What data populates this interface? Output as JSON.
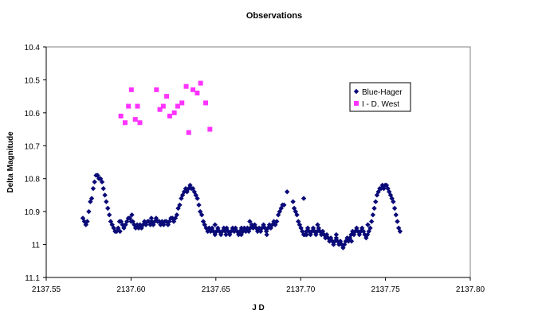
{
  "chart_data": {
    "type": "scatter",
    "title": "Observations",
    "xlabel": "J D",
    "ylabel": "Delta Magnitude",
    "xlim": [
      2137.55,
      2137.8
    ],
    "ylim": [
      10.4,
      11.1
    ],
    "y_reversed": true,
    "grid": false,
    "legend_position": "top-right",
    "x_ticks": [
      "2137.55",
      "2137.60",
      "2137.65",
      "2137.70",
      "2137.75",
      "2137.80"
    ],
    "x_tick_values": [
      2137.55,
      2137.6,
      2137.65,
      2137.7,
      2137.75,
      2137.8
    ],
    "y_ticks": [
      "10.4",
      "10.5",
      "10.6",
      "10.7",
      "10.8",
      "10.9",
      "11",
      "11.1"
    ],
    "y_tick_values": [
      10.4,
      10.5,
      10.6,
      10.7,
      10.8,
      10.9,
      11.0,
      11.1
    ],
    "series": [
      {
        "name": "Blue-Hager",
        "color": "#0a0a78",
        "marker": "diamond",
        "points": [
          [
            2137.5716,
            10.92
          ],
          [
            2137.5725,
            10.93
          ],
          [
            2137.5734,
            10.94
          ],
          [
            2137.5742,
            10.93
          ],
          [
            2137.5751,
            10.9
          ],
          [
            2137.576,
            10.87
          ],
          [
            2137.5768,
            10.86
          ],
          [
            2137.5777,
            10.83
          ],
          [
            2137.5785,
            10.81
          ],
          [
            2137.5794,
            10.79
          ],
          [
            2137.5803,
            10.79
          ],
          [
            2137.5811,
            10.8
          ],
          [
            2137.582,
            10.8
          ],
          [
            2137.5829,
            10.81
          ],
          [
            2137.5837,
            10.83
          ],
          [
            2137.5846,
            10.85
          ],
          [
            2137.5854,
            10.87
          ],
          [
            2137.5863,
            10.89
          ],
          [
            2137.5872,
            10.91
          ],
          [
            2137.588,
            10.93
          ],
          [
            2137.5889,
            10.94
          ],
          [
            2137.5898,
            10.95
          ],
          [
            2137.5906,
            10.96
          ],
          [
            2137.5915,
            10.96
          ],
          [
            2137.5924,
            10.95
          ],
          [
            2137.5932,
            10.93
          ],
          [
            2137.5941,
            10.93
          ],
          [
            2137.595,
            10.94
          ],
          [
            2137.5958,
            10.95
          ],
          [
            2137.5967,
            10.94
          ],
          [
            2137.5976,
            10.93
          ],
          [
            2137.5984,
            10.92
          ],
          [
            2137.5993,
            10.92
          ],
          [
            2137.6001,
            10.93
          ],
          [
            2137.601,
            10.93
          ],
          [
            2137.6019,
            10.94
          ],
          [
            2137.6027,
            10.95
          ],
          [
            2137.6036,
            10.94
          ],
          [
            2137.6045,
            10.95
          ],
          [
            2137.6053,
            10.94
          ],
          [
            2137.6062,
            10.95
          ],
          [
            2137.6071,
            10.94
          ],
          [
            2137.6079,
            10.93
          ],
          [
            2137.6088,
            10.94
          ],
          [
            2137.6097,
            10.93
          ],
          [
            2137.6105,
            10.93
          ],
          [
            2137.6114,
            10.94
          ],
          [
            2137.6122,
            10.93
          ],
          [
            2137.6131,
            10.94
          ],
          [
            2137.614,
            10.93
          ],
          [
            2137.6148,
            10.92
          ],
          [
            2137.6157,
            10.93
          ],
          [
            2137.6166,
            10.93
          ],
          [
            2137.6174,
            10.94
          ],
          [
            2137.6183,
            10.93
          ],
          [
            2137.6192,
            10.94
          ],
          [
            2137.62,
            10.93
          ],
          [
            2137.6209,
            10.93
          ],
          [
            2137.6218,
            10.94
          ],
          [
            2137.6226,
            10.93
          ],
          [
            2137.6235,
            10.92
          ],
          [
            2137.6244,
            10.92
          ],
          [
            2137.6252,
            10.93
          ],
          [
            2137.6261,
            10.92
          ],
          [
            2137.627,
            10.91
          ],
          [
            2137.6278,
            10.89
          ],
          [
            2137.6287,
            10.88
          ],
          [
            2137.6296,
            10.86
          ],
          [
            2137.6304,
            10.85
          ],
          [
            2137.6313,
            10.84
          ],
          [
            2137.6322,
            10.83
          ],
          [
            2137.633,
            10.84
          ],
          [
            2137.6339,
            10.83
          ],
          [
            2137.6348,
            10.82
          ],
          [
            2137.6356,
            10.83
          ],
          [
            2137.6365,
            10.83
          ],
          [
            2137.6373,
            10.84
          ],
          [
            2137.6382,
            10.85
          ],
          [
            2137.6391,
            10.86
          ],
          [
            2137.64,
            10.88
          ],
          [
            2137.6408,
            10.9
          ],
          [
            2137.6417,
            10.91
          ],
          [
            2137.6426,
            10.93
          ],
          [
            2137.6434,
            10.94
          ],
          [
            2137.6443,
            10.95
          ],
          [
            2137.6452,
            10.96
          ],
          [
            2137.646,
            10.95
          ],
          [
            2137.6469,
            10.96
          ],
          [
            2137.6478,
            10.95
          ],
          [
            2137.6486,
            10.96
          ],
          [
            2137.6495,
            10.97
          ],
          [
            2137.6504,
            10.96
          ],
          [
            2137.6512,
            10.95
          ],
          [
            2137.6521,
            10.96
          ],
          [
            2137.653,
            10.97
          ],
          [
            2137.6538,
            10.96
          ],
          [
            2137.6547,
            10.95
          ],
          [
            2137.6556,
            10.96
          ],
          [
            2137.6564,
            10.95
          ],
          [
            2137.6573,
            10.96
          ],
          [
            2137.6582,
            10.97
          ],
          [
            2137.659,
            10.96
          ],
          [
            2137.6599,
            10.95
          ],
          [
            2137.6608,
            10.96
          ],
          [
            2137.6616,
            10.95
          ],
          [
            2137.6625,
            10.96
          ],
          [
            2137.6634,
            10.97
          ],
          [
            2137.6642,
            10.96
          ],
          [
            2137.6651,
            10.95
          ],
          [
            2137.666,
            10.96
          ],
          [
            2137.6668,
            10.95
          ],
          [
            2137.6677,
            10.96
          ],
          [
            2137.6686,
            10.95
          ],
          [
            2137.6694,
            10.96
          ],
          [
            2137.6703,
            10.95
          ],
          [
            2137.6712,
            10.94
          ],
          [
            2137.672,
            10.95
          ],
          [
            2137.6729,
            10.94
          ],
          [
            2137.6738,
            10.95
          ],
          [
            2137.6746,
            10.96
          ],
          [
            2137.6755,
            10.95
          ],
          [
            2137.6764,
            10.96
          ],
          [
            2137.6772,
            10.95
          ],
          [
            2137.6781,
            10.94
          ],
          [
            2137.679,
            10.95
          ],
          [
            2137.6798,
            10.96
          ],
          [
            2137.6807,
            10.95
          ],
          [
            2137.6816,
            10.94
          ],
          [
            2137.6824,
            10.95
          ],
          [
            2137.6833,
            10.94
          ],
          [
            2137.6842,
            10.93
          ],
          [
            2137.685,
            10.94
          ],
          [
            2137.6859,
            10.93
          ],
          [
            2137.6868,
            10.91
          ],
          [
            2137.6876,
            10.9
          ],
          [
            2137.6885,
            10.89
          ],
          [
            2137.6893,
            10.88
          ],
          [
            2137.6902,
            10.88
          ],
          [
            2137.6955,
            10.87
          ],
          [
            2137.6962,
            10.89
          ],
          [
            2137.697,
            10.9
          ],
          [
            2137.6978,
            10.91
          ],
          [
            2137.6986,
            10.93
          ],
          [
            2137.6994,
            10.94
          ],
          [
            2137.7002,
            10.95
          ],
          [
            2137.701,
            10.96
          ],
          [
            2137.7018,
            10.97
          ],
          [
            2137.7026,
            10.97
          ],
          [
            2137.7034,
            10.96
          ],
          [
            2137.7042,
            10.95
          ],
          [
            2137.705,
            10.96
          ],
          [
            2137.7058,
            10.97
          ],
          [
            2137.7066,
            10.96
          ],
          [
            2137.7074,
            10.95
          ],
          [
            2137.7082,
            10.96
          ],
          [
            2137.709,
            10.97
          ],
          [
            2137.7098,
            10.96
          ],
          [
            2137.7106,
            10.95
          ],
          [
            2137.7114,
            10.96
          ],
          [
            2137.7122,
            10.97
          ],
          [
            2137.713,
            10.96
          ],
          [
            2137.7138,
            10.97
          ],
          [
            2137.7146,
            10.98
          ],
          [
            2137.7154,
            10.97
          ],
          [
            2137.7162,
            10.98
          ],
          [
            2137.717,
            10.99
          ],
          [
            2137.7178,
            10.98
          ],
          [
            2137.7186,
            10.99
          ],
          [
            2137.7194,
            11.0
          ],
          [
            2137.7202,
            10.99
          ],
          [
            2137.721,
            10.98
          ],
          [
            2137.7218,
            10.99
          ],
          [
            2137.7226,
            11.0
          ],
          [
            2137.7234,
            10.99
          ],
          [
            2137.7242,
            11.0
          ],
          [
            2137.725,
            11.01
          ],
          [
            2137.7258,
            11.0
          ],
          [
            2137.7266,
            10.99
          ],
          [
            2137.7274,
            10.98
          ],
          [
            2137.7282,
            10.99
          ],
          [
            2137.729,
            10.98
          ],
          [
            2137.7298,
            10.97
          ],
          [
            2137.7306,
            10.96
          ],
          [
            2137.7314,
            10.97
          ],
          [
            2137.7322,
            10.96
          ],
          [
            2137.733,
            10.95
          ],
          [
            2137.7338,
            10.96
          ],
          [
            2137.7346,
            10.97
          ],
          [
            2137.7354,
            10.96
          ],
          [
            2137.7362,
            10.95
          ],
          [
            2137.737,
            10.96
          ],
          [
            2137.7378,
            10.97
          ],
          [
            2137.7386,
            10.98
          ],
          [
            2137.7394,
            10.97
          ],
          [
            2137.7402,
            10.96
          ],
          [
            2137.741,
            10.95
          ],
          [
            2137.7418,
            10.93
          ],
          [
            2137.7426,
            10.91
          ],
          [
            2137.7434,
            10.89
          ],
          [
            2137.7442,
            10.87
          ],
          [
            2137.745,
            10.85
          ],
          [
            2137.7458,
            10.84
          ],
          [
            2137.7466,
            10.83
          ],
          [
            2137.7474,
            10.83
          ],
          [
            2137.7482,
            10.82
          ],
          [
            2137.749,
            10.83
          ],
          [
            2137.7498,
            10.82
          ],
          [
            2137.7506,
            10.82
          ],
          [
            2137.7514,
            10.83
          ],
          [
            2137.7522,
            10.84
          ],
          [
            2137.753,
            10.85
          ],
          [
            2137.7538,
            10.86
          ],
          [
            2137.7546,
            10.87
          ],
          [
            2137.7554,
            10.89
          ],
          [
            2137.7562,
            10.91
          ],
          [
            2137.757,
            10.93
          ],
          [
            2137.7578,
            10.95
          ],
          [
            2137.7586,
            10.96
          ],
          [
            2137.692,
            10.84
          ],
          [
            2137.7018,
            10.86
          ],
          [
            2137.7035,
            10.97
          ],
          [
            2137.71,
            10.94
          ],
          [
            2137.721,
            10.97
          ],
          [
            2137.73,
            10.99
          ],
          [
            2137.7396,
            10.94
          ],
          [
            2137.612,
            10.92
          ],
          [
            2137.6005,
            10.91
          ],
          [
            2137.5935,
            10.96
          ],
          [
            2137.6495,
            10.94
          ],
          [
            2137.656,
            10.97
          ],
          [
            2137.665,
            10.97
          ],
          [
            2137.67,
            10.93
          ],
          [
            2137.68,
            10.97
          ]
        ]
      },
      {
        "name": "I - D. West",
        "color": "#ff33ff",
        "marker": "square",
        "points": [
          [
            2137.594,
            10.61
          ],
          [
            2137.5965,
            10.63
          ],
          [
            2137.5985,
            10.58
          ],
          [
            2137.6002,
            10.53
          ],
          [
            2137.6025,
            10.62
          ],
          [
            2137.6038,
            10.58
          ],
          [
            2137.6052,
            10.63
          ],
          [
            2137.615,
            10.53
          ],
          [
            2137.617,
            10.59
          ],
          [
            2137.619,
            10.58
          ],
          [
            2137.621,
            10.55
          ],
          [
            2137.6228,
            10.61
          ],
          [
            2137.6255,
            10.6
          ],
          [
            2137.6275,
            10.58
          ],
          [
            2137.63,
            10.57
          ],
          [
            2137.6325,
            10.52
          ],
          [
            2137.634,
            10.66
          ],
          [
            2137.6365,
            10.53
          ],
          [
            2137.639,
            10.54
          ],
          [
            2137.641,
            10.51
          ],
          [
            2137.644,
            10.57
          ],
          [
            2137.6465,
            10.65
          ]
        ]
      }
    ]
  }
}
